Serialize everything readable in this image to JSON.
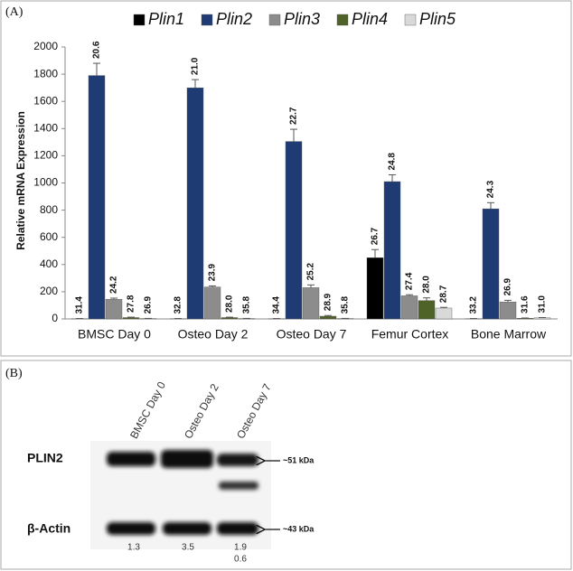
{
  "panel_labels": [
    "(A)",
    "(B)"
  ],
  "chart_data": {
    "type": "bar",
    "y_label": "Relative mRNA Expression",
    "categories": [
      "BMSC Day 0",
      "Osteo Day 2",
      "Osteo Day 7",
      "Femur Cortex",
      "Bone Marrow"
    ],
    "ylim": [
      0,
      2000
    ],
    "yticks": [
      0,
      200,
      400,
      600,
      800,
      1000,
      1200,
      1400,
      1600,
      1800,
      2000
    ],
    "legend": "top",
    "series": [
      {
        "name": "Plin1",
        "color": "#000000",
        "values": [
          2,
          2,
          2,
          450,
          2
        ],
        "errors": [
          1,
          1,
          1,
          60,
          1
        ],
        "ct_labels": [
          "31.4",
          "32.8",
          "34.4",
          "26.7",
          "33.2"
        ]
      },
      {
        "name": "Plin2",
        "color": "#1f3b73",
        "values": [
          1790,
          1700,
          1305,
          1010,
          810
        ],
        "errors": [
          90,
          60,
          90,
          50,
          45
        ],
        "ct_labels": [
          "20.6",
          "21.0",
          "22.7",
          "24.8",
          "24.3"
        ]
      },
      {
        "name": "Plin3",
        "color": "#8c8c8c",
        "values": [
          145,
          235,
          230,
          170,
          125
        ],
        "errors": [
          8,
          8,
          20,
          8,
          12
        ],
        "ct_labels": [
          "24.2",
          "23.9",
          "25.2",
          "27.4",
          "26.9"
        ]
      },
      {
        "name": "Plin4",
        "color": "#4f6228",
        "values": [
          10,
          10,
          20,
          135,
          5
        ],
        "errors": [
          3,
          3,
          5,
          20,
          2
        ],
        "ct_labels": [
          "27.8",
          "28.0",
          "28.9",
          "28.0",
          "31.6"
        ]
      },
      {
        "name": "Plin5",
        "color": "#d9d9d9",
        "values": [
          3,
          3,
          3,
          80,
          8
        ],
        "errors": [
          1,
          1,
          1,
          5,
          2
        ],
        "ct_labels": [
          "26.9",
          "35.8",
          "35.8",
          "28.7",
          "31.0"
        ]
      }
    ]
  },
  "blot": {
    "lanes": [
      "BMSC Day 0",
      "Osteo Day 2",
      "Osteo Day 7"
    ],
    "rows": [
      {
        "label": "PLIN2",
        "marker": "~51 kDa"
      },
      {
        "label": "β-Actin",
        "marker": "~43 kDa"
      }
    ],
    "quantification": [
      [
        "1.3"
      ],
      [
        "3.5"
      ],
      [
        "1.9",
        "0.6"
      ]
    ]
  }
}
